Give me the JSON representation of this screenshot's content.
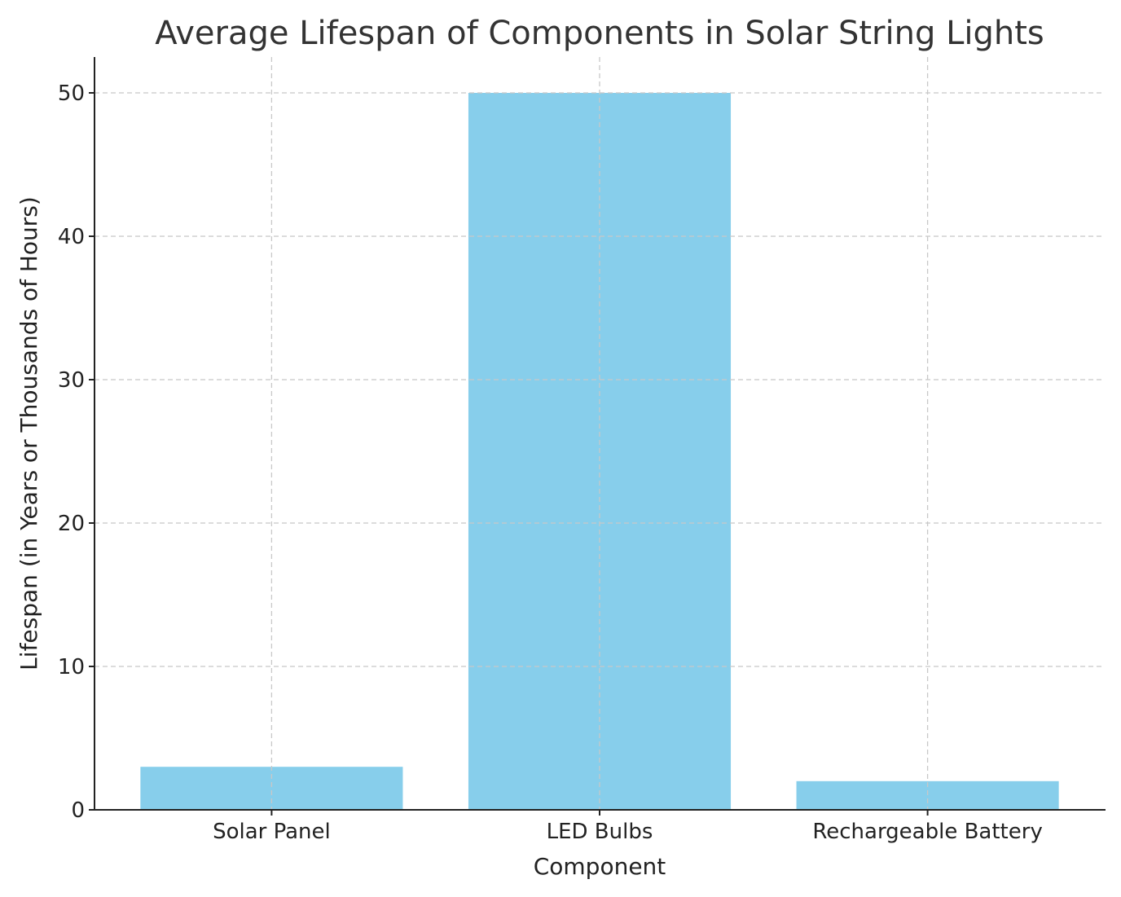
{
  "chart_data": {
    "type": "bar",
    "title": "Average Lifespan of Components in Solar String Lights",
    "xlabel": "Component",
    "ylabel": "Lifespan (in Years or Thousands of Hours)",
    "categories": [
      "Solar Panel",
      "LED Bulbs",
      "Rechargeable Battery"
    ],
    "values": [
      3,
      50,
      2
    ],
    "ylim": [
      0,
      52.5
    ],
    "yticks": [
      0,
      10,
      20,
      30,
      40,
      50
    ],
    "grid": true,
    "bar_color": "#87CEEB"
  }
}
